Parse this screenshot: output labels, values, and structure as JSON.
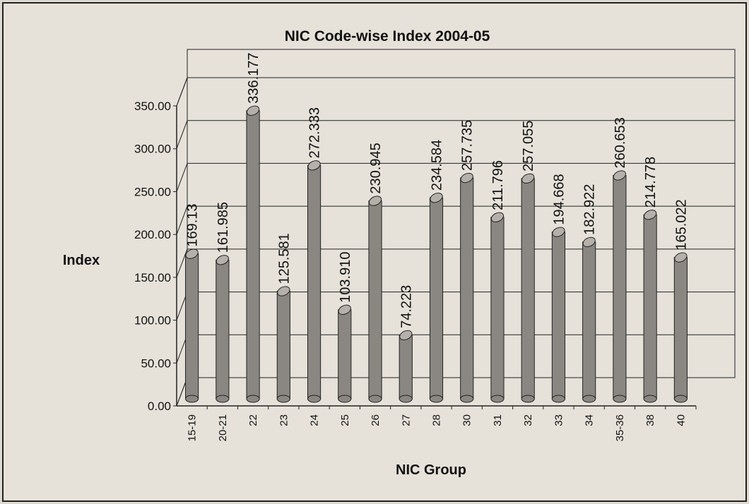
{
  "chart_data": {
    "type": "bar",
    "title": "NIC Code-wise Index 2004-05",
    "x_label": "NIC Group",
    "y_label": "Index",
    "categories": [
      "15-19",
      "20-21",
      "22",
      "23",
      "24",
      "25",
      "26",
      "27",
      "28",
      "30",
      "31",
      "32",
      "33",
      "34",
      "35-36",
      "38",
      "40"
    ],
    "values": [
      169.13,
      161.985,
      336.177,
      125.581,
      272.333,
      103.91,
      230.945,
      74.223,
      234.584,
      257.735,
      211.796,
      257.055,
      194.668,
      182.922,
      260.653,
      214.778,
      165.022
    ],
    "value_labels": [
      "169.13",
      "161.985",
      "336.177",
      "125.581",
      "272.333",
      "103.910",
      "230.945",
      "74.223",
      "234.584",
      "257.735",
      "211.796",
      "257.055",
      "194.668",
      "182.922",
      "260.653",
      "214.778",
      "165.022"
    ],
    "color": "#8a8782",
    "ylim": [
      0,
      350
    ],
    "yticks": [
      {
        "value": 0,
        "label": "0.00"
      },
      {
        "value": 50,
        "label": "50.00"
      },
      {
        "value": 100,
        "label": "100.00"
      },
      {
        "value": 150,
        "label": "150.00"
      },
      {
        "value": 200,
        "label": "200.00"
      },
      {
        "value": 250,
        "label": "250.00"
      },
      {
        "value": 300,
        "label": "300.00"
      },
      {
        "value": 350,
        "label": "350.00"
      }
    ],
    "grid": true
  }
}
